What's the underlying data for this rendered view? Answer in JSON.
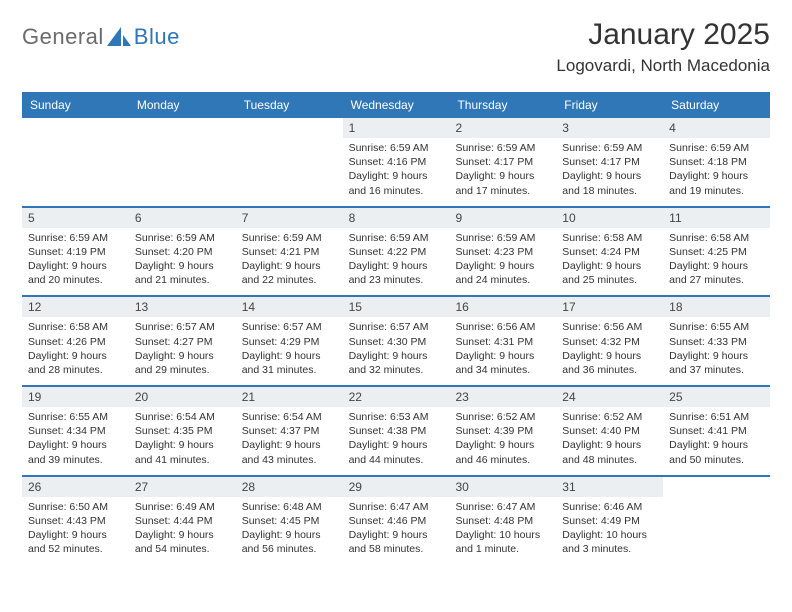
{
  "logo": {
    "text1": "General",
    "text2": "Blue"
  },
  "title": {
    "month": "January 2025",
    "location": "Logovardi, North Macedonia"
  },
  "colors": {
    "brand": "#2f77b7",
    "daynum_bg": "#eceff1",
    "text": "#333333",
    "bg": "#ffffff"
  },
  "day_headers": [
    "Sunday",
    "Monday",
    "Tuesday",
    "Wednesday",
    "Thursday",
    "Friday",
    "Saturday"
  ],
  "weeks": [
    [
      {
        "num": "",
        "lines": []
      },
      {
        "num": "",
        "lines": []
      },
      {
        "num": "",
        "lines": []
      },
      {
        "num": "1",
        "lines": [
          "Sunrise: 6:59 AM",
          "Sunset: 4:16 PM",
          "Daylight: 9 hours",
          "and 16 minutes."
        ]
      },
      {
        "num": "2",
        "lines": [
          "Sunrise: 6:59 AM",
          "Sunset: 4:17 PM",
          "Daylight: 9 hours",
          "and 17 minutes."
        ]
      },
      {
        "num": "3",
        "lines": [
          "Sunrise: 6:59 AM",
          "Sunset: 4:17 PM",
          "Daylight: 9 hours",
          "and 18 minutes."
        ]
      },
      {
        "num": "4",
        "lines": [
          "Sunrise: 6:59 AM",
          "Sunset: 4:18 PM",
          "Daylight: 9 hours",
          "and 19 minutes."
        ]
      }
    ],
    [
      {
        "num": "5",
        "lines": [
          "Sunrise: 6:59 AM",
          "Sunset: 4:19 PM",
          "Daylight: 9 hours",
          "and 20 minutes."
        ]
      },
      {
        "num": "6",
        "lines": [
          "Sunrise: 6:59 AM",
          "Sunset: 4:20 PM",
          "Daylight: 9 hours",
          "and 21 minutes."
        ]
      },
      {
        "num": "7",
        "lines": [
          "Sunrise: 6:59 AM",
          "Sunset: 4:21 PM",
          "Daylight: 9 hours",
          "and 22 minutes."
        ]
      },
      {
        "num": "8",
        "lines": [
          "Sunrise: 6:59 AM",
          "Sunset: 4:22 PM",
          "Daylight: 9 hours",
          "and 23 minutes."
        ]
      },
      {
        "num": "9",
        "lines": [
          "Sunrise: 6:59 AM",
          "Sunset: 4:23 PM",
          "Daylight: 9 hours",
          "and 24 minutes."
        ]
      },
      {
        "num": "10",
        "lines": [
          "Sunrise: 6:58 AM",
          "Sunset: 4:24 PM",
          "Daylight: 9 hours",
          "and 25 minutes."
        ]
      },
      {
        "num": "11",
        "lines": [
          "Sunrise: 6:58 AM",
          "Sunset: 4:25 PM",
          "Daylight: 9 hours",
          "and 27 minutes."
        ]
      }
    ],
    [
      {
        "num": "12",
        "lines": [
          "Sunrise: 6:58 AM",
          "Sunset: 4:26 PM",
          "Daylight: 9 hours",
          "and 28 minutes."
        ]
      },
      {
        "num": "13",
        "lines": [
          "Sunrise: 6:57 AM",
          "Sunset: 4:27 PM",
          "Daylight: 9 hours",
          "and 29 minutes."
        ]
      },
      {
        "num": "14",
        "lines": [
          "Sunrise: 6:57 AM",
          "Sunset: 4:29 PM",
          "Daylight: 9 hours",
          "and 31 minutes."
        ]
      },
      {
        "num": "15",
        "lines": [
          "Sunrise: 6:57 AM",
          "Sunset: 4:30 PM",
          "Daylight: 9 hours",
          "and 32 minutes."
        ]
      },
      {
        "num": "16",
        "lines": [
          "Sunrise: 6:56 AM",
          "Sunset: 4:31 PM",
          "Daylight: 9 hours",
          "and 34 minutes."
        ]
      },
      {
        "num": "17",
        "lines": [
          "Sunrise: 6:56 AM",
          "Sunset: 4:32 PM",
          "Daylight: 9 hours",
          "and 36 minutes."
        ]
      },
      {
        "num": "18",
        "lines": [
          "Sunrise: 6:55 AM",
          "Sunset: 4:33 PM",
          "Daylight: 9 hours",
          "and 37 minutes."
        ]
      }
    ],
    [
      {
        "num": "19",
        "lines": [
          "Sunrise: 6:55 AM",
          "Sunset: 4:34 PM",
          "Daylight: 9 hours",
          "and 39 minutes."
        ]
      },
      {
        "num": "20",
        "lines": [
          "Sunrise: 6:54 AM",
          "Sunset: 4:35 PM",
          "Daylight: 9 hours",
          "and 41 minutes."
        ]
      },
      {
        "num": "21",
        "lines": [
          "Sunrise: 6:54 AM",
          "Sunset: 4:37 PM",
          "Daylight: 9 hours",
          "and 43 minutes."
        ]
      },
      {
        "num": "22",
        "lines": [
          "Sunrise: 6:53 AM",
          "Sunset: 4:38 PM",
          "Daylight: 9 hours",
          "and 44 minutes."
        ]
      },
      {
        "num": "23",
        "lines": [
          "Sunrise: 6:52 AM",
          "Sunset: 4:39 PM",
          "Daylight: 9 hours",
          "and 46 minutes."
        ]
      },
      {
        "num": "24",
        "lines": [
          "Sunrise: 6:52 AM",
          "Sunset: 4:40 PM",
          "Daylight: 9 hours",
          "and 48 minutes."
        ]
      },
      {
        "num": "25",
        "lines": [
          "Sunrise: 6:51 AM",
          "Sunset: 4:41 PM",
          "Daylight: 9 hours",
          "and 50 minutes."
        ]
      }
    ],
    [
      {
        "num": "26",
        "lines": [
          "Sunrise: 6:50 AM",
          "Sunset: 4:43 PM",
          "Daylight: 9 hours",
          "and 52 minutes."
        ]
      },
      {
        "num": "27",
        "lines": [
          "Sunrise: 6:49 AM",
          "Sunset: 4:44 PM",
          "Daylight: 9 hours",
          "and 54 minutes."
        ]
      },
      {
        "num": "28",
        "lines": [
          "Sunrise: 6:48 AM",
          "Sunset: 4:45 PM",
          "Daylight: 9 hours",
          "and 56 minutes."
        ]
      },
      {
        "num": "29",
        "lines": [
          "Sunrise: 6:47 AM",
          "Sunset: 4:46 PM",
          "Daylight: 9 hours",
          "and 58 minutes."
        ]
      },
      {
        "num": "30",
        "lines": [
          "Sunrise: 6:47 AM",
          "Sunset: 4:48 PM",
          "Daylight: 10 hours",
          "and 1 minute."
        ]
      },
      {
        "num": "31",
        "lines": [
          "Sunrise: 6:46 AM",
          "Sunset: 4:49 PM",
          "Daylight: 10 hours",
          "and 3 minutes."
        ]
      },
      {
        "num": "",
        "lines": []
      }
    ]
  ]
}
